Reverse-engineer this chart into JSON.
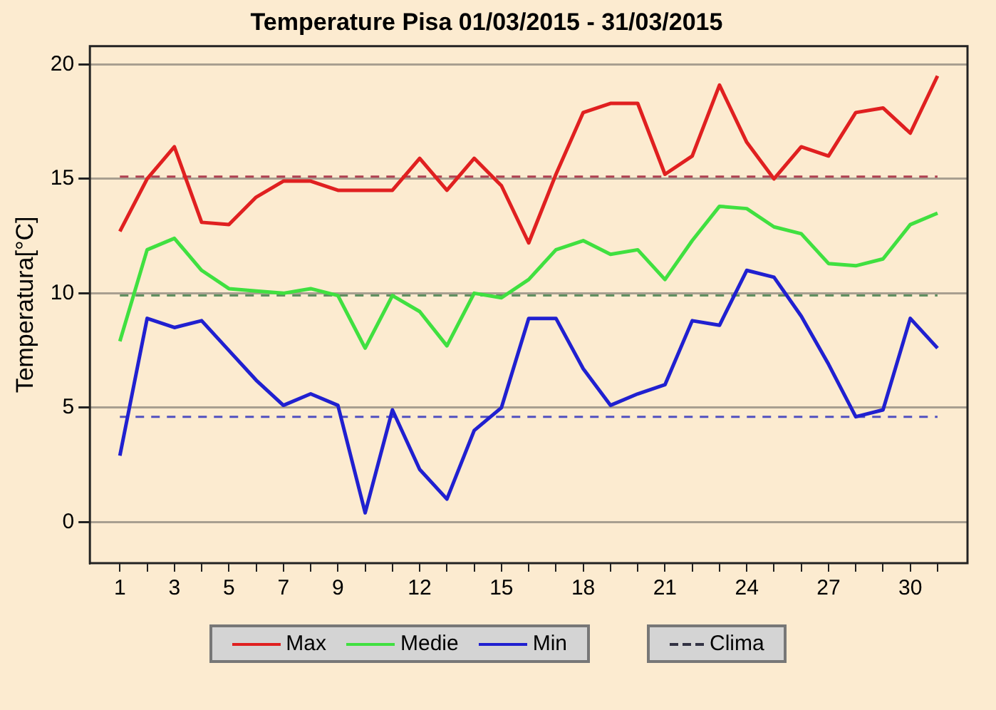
{
  "chart_data": {
    "type": "line",
    "title": "Temperature Pisa 01/03/2015 - 31/03/2015",
    "ylabel": "Temperatura[°C]",
    "x": [
      1,
      2,
      3,
      4,
      5,
      6,
      7,
      8,
      9,
      10,
      11,
      12,
      13,
      14,
      15,
      16,
      17,
      18,
      19,
      20,
      21,
      22,
      23,
      24,
      25,
      26,
      27,
      28,
      29,
      30,
      31
    ],
    "series": [
      {
        "name": "Max",
        "color": "#e02020",
        "values": [
          12.7,
          15.0,
          16.4,
          13.1,
          13.0,
          14.2,
          14.9,
          14.9,
          14.5,
          14.5,
          14.5,
          15.9,
          14.5,
          15.9,
          14.7,
          12.2,
          15.2,
          17.9,
          18.3,
          18.3,
          15.2,
          16.0,
          19.1,
          16.6,
          15.0,
          16.4,
          16.0,
          17.9,
          18.1,
          17.0,
          19.5
        ]
      },
      {
        "name": "Medie",
        "color": "#40e040",
        "values": [
          7.9,
          11.9,
          12.4,
          11.0,
          10.2,
          10.1,
          10.0,
          10.2,
          9.9,
          7.6,
          9.9,
          9.2,
          7.7,
          10.0,
          9.8,
          10.6,
          11.9,
          12.3,
          11.7,
          11.9,
          10.6,
          12.3,
          13.8,
          13.7,
          12.9,
          12.6,
          11.3,
          11.2,
          11.5,
          13.0,
          13.5
        ]
      },
      {
        "name": "Min",
        "color": "#2020d0",
        "values": [
          2.9,
          8.9,
          8.5,
          8.8,
          7.5,
          6.2,
          5.1,
          5.6,
          5.1,
          0.4,
          4.9,
          2.3,
          1.0,
          4.0,
          5.0,
          8.9,
          8.9,
          6.7,
          5.1,
          5.6,
          6.0,
          8.8,
          8.6,
          11.0,
          10.7,
          9.0,
          6.9,
          4.6,
          4.9,
          8.9,
          7.6
        ]
      }
    ],
    "ref_lines": [
      {
        "axis": "y",
        "value": 15.1,
        "color": "#b04050",
        "line_style": "dashed"
      },
      {
        "axis": "y",
        "value": 9.9,
        "color": "#609060",
        "line_style": "dashed"
      },
      {
        "axis": "y",
        "value": 4.6,
        "color": "#5050c0",
        "line_style": "dashed"
      }
    ],
    "annotations": [
      "Clima"
    ],
    "xlim": [
      -0.1,
      32.1
    ],
    "xticks": [
      1,
      {
        "value": 2,
        "label": null
      },
      3,
      {
        "value": 4,
        "label": null
      },
      5,
      {
        "value": 6,
        "label": null
      },
      7,
      {
        "value": 8,
        "label": null
      },
      9,
      {
        "value": 10,
        "label": null
      },
      {
        "value": 11,
        "label": null
      },
      12,
      {
        "value": 13,
        "label": null
      },
      {
        "value": 14,
        "label": null
      },
      15,
      {
        "value": 16,
        "label": null
      },
      {
        "value": 17,
        "label": null
      },
      18,
      {
        "value": 19,
        "label": null
      },
      {
        "value": 20,
        "label": null
      },
      21,
      {
        "value": 22,
        "label": null
      },
      {
        "value": 23,
        "label": null
      },
      24,
      {
        "value": 25,
        "label": null
      },
      {
        "value": 26,
        "label": null
      },
      27,
      {
        "value": 28,
        "label": null
      },
      {
        "value": 29,
        "label": null
      },
      30,
      {
        "value": 31,
        "label": null
      }
    ],
    "ylim": [
      -1.8,
      20.8
    ],
    "yticks": [
      0,
      5,
      10,
      15,
      20
    ],
    "grid": "y",
    "legend": "bottom",
    "marker": "none",
    "line_style": "solid"
  }
}
